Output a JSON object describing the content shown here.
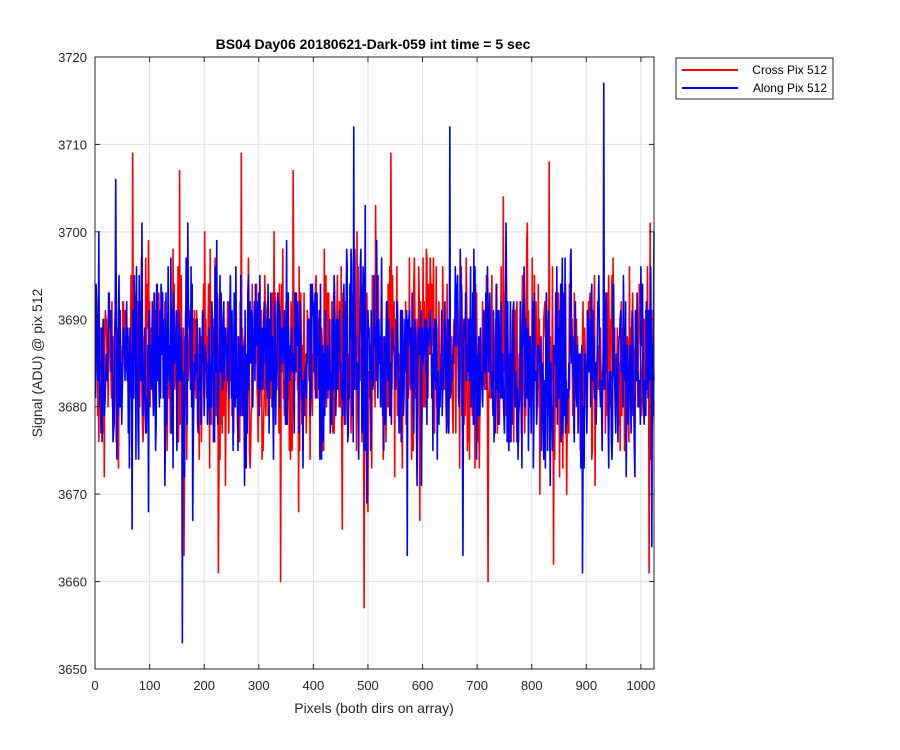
{
  "chart_data": {
    "type": "line",
    "title": "BS04 Day06 20180621-Dark-059 int time = 5 sec",
    "xlabel": "Pixels (both dirs on array)",
    "ylabel": "Signal (ADU) @ pix 512",
    "xlim": [
      0,
      1024
    ],
    "ylim": [
      3650,
      3720
    ],
    "xticks": [
      0,
      100,
      200,
      300,
      400,
      500,
      600,
      700,
      800,
      900,
      1000
    ],
    "yticks": [
      3650,
      3660,
      3670,
      3680,
      3690,
      3700,
      3710,
      3720
    ],
    "grid": true,
    "legend_position": "outside-top-right",
    "series": [
      {
        "name": "Cross Pix 512",
        "color": "#ff0000",
        "mean": 3685,
        "std": 5.8,
        "x_range": [
          1,
          1024
        ],
        "extremes": [
          {
            "x": 69,
            "y": 3709
          },
          {
            "x": 155,
            "y": 3707
          },
          {
            "x": 163,
            "y": 3663
          },
          {
            "x": 226,
            "y": 3661
          },
          {
            "x": 268,
            "y": 3709
          },
          {
            "x": 340,
            "y": 3660
          },
          {
            "x": 363,
            "y": 3707
          },
          {
            "x": 493,
            "y": 3657
          },
          {
            "x": 542,
            "y": 3709
          },
          {
            "x": 720,
            "y": 3660
          },
          {
            "x": 832,
            "y": 3708
          },
          {
            "x": 840,
            "y": 3662
          },
          {
            "x": 1015,
            "y": 3661
          }
        ]
      },
      {
        "name": "Along Pix 512",
        "color": "#0000ff",
        "mean": 3685,
        "std": 5.8,
        "x_range": [
          1,
          1024
        ],
        "extremes": [
          {
            "x": 38,
            "y": 3706
          },
          {
            "x": 160,
            "y": 3653
          },
          {
            "x": 474,
            "y": 3712
          },
          {
            "x": 572,
            "y": 3663
          },
          {
            "x": 650,
            "y": 3712
          },
          {
            "x": 674,
            "y": 3663
          },
          {
            "x": 893,
            "y": 3661
          },
          {
            "x": 932,
            "y": 3717
          },
          {
            "x": 1020,
            "y": 3664
          },
          {
            "x": 1024,
            "y": 3700
          }
        ]
      }
    ]
  }
}
